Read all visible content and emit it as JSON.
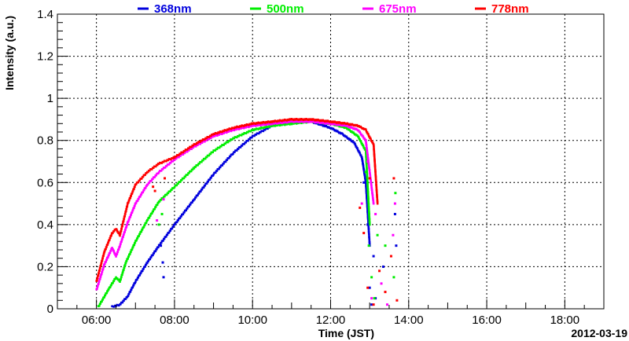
{
  "chart_data": {
    "type": "scatter",
    "title": "",
    "xlabel": "Time (JST)",
    "ylabel": "Intensity (a.u.)",
    "date_label": "2012-03-19",
    "x_unit": "hours (JST)",
    "xlim": [
      5.0,
      19.0
    ],
    "ylim": [
      0.0,
      1.4
    ],
    "x_ticks": [
      6,
      8,
      10,
      12,
      14,
      16,
      18
    ],
    "x_tick_labels": [
      "06:00",
      "08:00",
      "10:00",
      "12:00",
      "14:00",
      "16:00",
      "18:00"
    ],
    "y_ticks": [
      0,
      0.2,
      0.4,
      0.6,
      0.8,
      1.0,
      1.2,
      1.4
    ],
    "y_tick_labels": [
      "0",
      "0.2",
      "0.4",
      "0.6",
      "0.8",
      "1",
      "1.2",
      "1.4"
    ],
    "grid": true,
    "legend_position": "top",
    "series": [
      {
        "name": "368nm",
        "color": "#0000dd",
        "x": [
          6.4,
          6.6,
          6.8,
          7.0,
          7.3,
          7.6,
          8.0,
          8.5,
          9.0,
          9.5,
          10.0,
          10.5,
          11.0,
          11.5,
          12.0,
          12.3,
          12.6,
          12.8,
          12.9,
          13.0
        ],
        "y": [
          0.01,
          0.02,
          0.06,
          0.13,
          0.22,
          0.3,
          0.4,
          0.52,
          0.64,
          0.74,
          0.82,
          0.87,
          0.89,
          0.89,
          0.86,
          0.83,
          0.79,
          0.72,
          0.6,
          0.3
        ]
      },
      {
        "name": "500nm",
        "color": "#00ee00",
        "x": [
          6.05,
          6.3,
          6.5,
          6.6,
          6.75,
          7.0,
          7.3,
          7.6,
          8.0,
          8.5,
          9.0,
          9.5,
          10.0,
          10.5,
          11.0,
          11.5,
          12.0,
          12.4,
          12.7,
          12.9,
          13.0
        ],
        "y": [
          0.01,
          0.09,
          0.15,
          0.13,
          0.22,
          0.32,
          0.42,
          0.51,
          0.58,
          0.67,
          0.75,
          0.81,
          0.85,
          0.87,
          0.88,
          0.89,
          0.88,
          0.86,
          0.82,
          0.75,
          0.4
        ]
      },
      {
        "name": "675nm",
        "color": "#ff00ff",
        "x": [
          6.0,
          6.2,
          6.4,
          6.5,
          6.6,
          6.8,
          7.0,
          7.3,
          7.6,
          8.0,
          8.5,
          9.0,
          9.5,
          10.0,
          10.5,
          11.0,
          11.5,
          12.0,
          12.4,
          12.7,
          12.9,
          13.1
        ],
        "y": [
          0.09,
          0.21,
          0.29,
          0.25,
          0.3,
          0.41,
          0.5,
          0.59,
          0.65,
          0.71,
          0.77,
          0.82,
          0.85,
          0.87,
          0.88,
          0.89,
          0.89,
          0.88,
          0.87,
          0.85,
          0.8,
          0.5
        ]
      },
      {
        "name": "778nm",
        "color": "#ff0000",
        "x": [
          6.0,
          6.2,
          6.4,
          6.5,
          6.6,
          6.8,
          7.0,
          7.3,
          7.6,
          8.0,
          8.5,
          9.0,
          9.5,
          10.0,
          10.5,
          11.0,
          11.5,
          12.0,
          12.4,
          12.7,
          12.9,
          13.1,
          13.2
        ],
        "y": [
          0.13,
          0.27,
          0.36,
          0.38,
          0.35,
          0.5,
          0.59,
          0.65,
          0.69,
          0.72,
          0.78,
          0.83,
          0.86,
          0.88,
          0.89,
          0.9,
          0.9,
          0.89,
          0.88,
          0.87,
          0.85,
          0.78,
          0.5
        ]
      }
    ],
    "scatter_points": [
      {
        "series": "368nm",
        "points": [
          [
            7.65,
            0.3
          ],
          [
            7.7,
            0.22
          ],
          [
            7.72,
            0.15
          ],
          [
            12.85,
            0.6
          ],
          [
            12.95,
            0.4
          ],
          [
            13.0,
            0.1
          ],
          [
            13.05,
            0.02
          ],
          [
            13.1,
            0.25
          ],
          [
            13.15,
            0.05
          ],
          [
            13.35,
            0.2
          ],
          [
            13.65,
            0.45
          ],
          [
            13.68,
            0.3
          ]
        ]
      },
      {
        "series": "500nm",
        "points": [
          [
            7.6,
            0.4
          ],
          [
            7.68,
            0.45
          ],
          [
            12.9,
            0.65
          ],
          [
            12.98,
            0.3
          ],
          [
            13.05,
            0.15
          ],
          [
            13.12,
            0.05
          ],
          [
            13.2,
            0.35
          ],
          [
            13.4,
            0.3
          ],
          [
            13.62,
            0.15
          ],
          [
            13.66,
            0.55
          ]
        ]
      },
      {
        "series": "675nm",
        "points": [
          [
            7.55,
            0.42
          ],
          [
            7.72,
            0.52
          ],
          [
            12.8,
            0.5
          ],
          [
            12.95,
            0.7
          ],
          [
            13.05,
            0.05
          ],
          [
            13.15,
            0.45
          ],
          [
            13.3,
            0.12
          ],
          [
            13.45,
            0.02
          ],
          [
            13.6,
            0.35
          ],
          [
            13.65,
            0.5
          ]
        ]
      },
      {
        "series": "778nm",
        "points": [
          [
            7.45,
            0.58
          ],
          [
            7.5,
            0.56
          ],
          [
            7.75,
            0.62
          ],
          [
            12.75,
            0.48
          ],
          [
            12.85,
            0.36
          ],
          [
            12.95,
            0.1
          ],
          [
            13.0,
            0.62
          ],
          [
            13.1,
            0.02
          ],
          [
            13.25,
            0.18
          ],
          [
            13.4,
            0.08
          ],
          [
            13.55,
            0.25
          ],
          [
            13.62,
            0.62
          ],
          [
            13.7,
            0.04
          ]
        ]
      }
    ]
  }
}
